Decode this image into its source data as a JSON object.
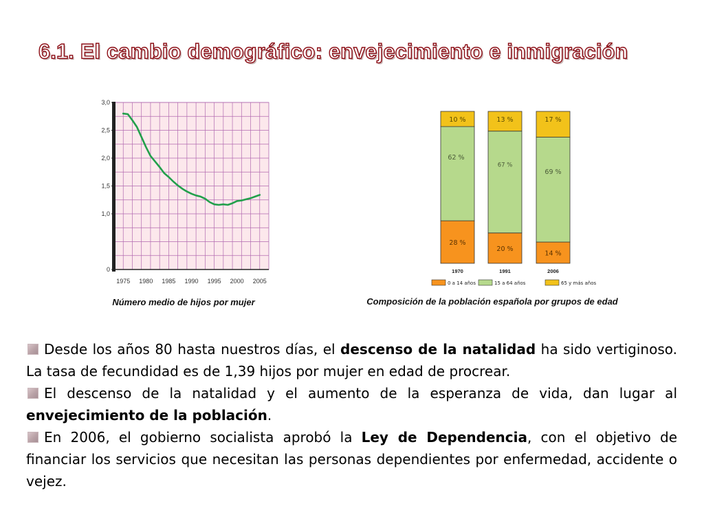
{
  "slide": {
    "title": "6.1. El cambio demográfico: envejecimiento e inmigración"
  },
  "captions": {
    "left": "Número medio de hijos por mujer",
    "right": "Composición de la población española por grupos de edad"
  },
  "bullets": [
    {
      "parts": [
        {
          "text": "Desde los años 80 hasta nuestros días, el ",
          "bold": false
        },
        {
          "text": "descenso de la natalidad",
          "bold": true
        },
        {
          "text": " ha sido vertiginoso. La tasa de fecundidad es de 1,39 hijos por mujer en edad de procrear.",
          "bold": false
        }
      ]
    },
    {
      "parts": [
        {
          "text": "El descenso de la natalidad y el aumento de la esperanza de vida, dan lugar al ",
          "bold": false
        },
        {
          "text": "envejecimiento de la población",
          "bold": true
        },
        {
          "text": ".",
          "bold": false
        }
      ]
    },
    {
      "parts": [
        {
          "text": "En 2006, el gobierno socialista aprobó la ",
          "bold": false
        },
        {
          "text": "Ley de Dependencia",
          "bold": true
        },
        {
          "text": ", con el objetivo de financiar los servicios que necesitan las personas dependientes por enfermedad, accidente o vejez.",
          "bold": false
        }
      ]
    }
  ],
  "colors": {
    "line": "#22a04b",
    "plot_bg": "#fce8ec",
    "grid": "#b26ab0",
    "axis": "#222222",
    "title_stroke": "#8a0a12",
    "age_0_14": "#f7931e",
    "age_15_64": "#b6d98c",
    "age_65_plus": "#f2c21a",
    "bar_outline": "#333333"
  },
  "chart_data": [
    {
      "type": "line",
      "title": "",
      "xlabel": "",
      "ylabel": "",
      "xlim": [
        1973,
        2007
      ],
      "ylim": [
        0,
        3.0
      ],
      "grid": true,
      "x_ticks": [
        1975,
        1980,
        1985,
        1990,
        1995,
        2000,
        2005
      ],
      "x_tick_labels": [
        "1975",
        "1980",
        "1985",
        "1990",
        "1995",
        "2000",
        "2005"
      ],
      "y_ticks": [
        0,
        1.0,
        1.5,
        2.0,
        2.5,
        3.0
      ],
      "y_tick_labels": [
        "0",
        "1,0",
        "1,5",
        "2,0",
        "2,5",
        "3,0"
      ],
      "series": [
        {
          "x": [
            1975,
            1976,
            1977,
            1978,
            1979,
            1980,
            1981,
            1982,
            1983,
            1984,
            1985,
            1986,
            1987,
            1988,
            1989,
            1990,
            1991,
            1992,
            1993,
            1994,
            1995,
            1996,
            1997,
            1998,
            1999,
            2000,
            2001,
            2002,
            2003,
            2004,
            2005
          ],
          "y": [
            2.8,
            2.79,
            2.68,
            2.56,
            2.38,
            2.2,
            2.04,
            1.94,
            1.84,
            1.73,
            1.66,
            1.58,
            1.51,
            1.45,
            1.4,
            1.36,
            1.33,
            1.31,
            1.27,
            1.21,
            1.17,
            1.16,
            1.17,
            1.16,
            1.19,
            1.23,
            1.24,
            1.26,
            1.28,
            1.31,
            1.34
          ]
        }
      ]
    },
    {
      "type": "bar",
      "stacked": true,
      "categories": [
        "1970",
        "1991",
        "2006"
      ],
      "series": [
        {
          "name": "0 a 14 años",
          "values": [
            28,
            20,
            14
          ],
          "labels": [
            "28 %",
            "20 %",
            "14 %"
          ]
        },
        {
          "name": "15 a 64 años",
          "values": [
            62,
            67,
            69
          ],
          "labels": [
            "62 %",
            "67 %",
            "69 %"
          ]
        },
        {
          "name": "65 y más años",
          "values": [
            10,
            13,
            17
          ],
          "labels": [
            "10 %",
            "13 %",
            "17 %"
          ]
        }
      ],
      "ylim": [
        0,
        100
      ],
      "legend": "bottom"
    }
  ]
}
